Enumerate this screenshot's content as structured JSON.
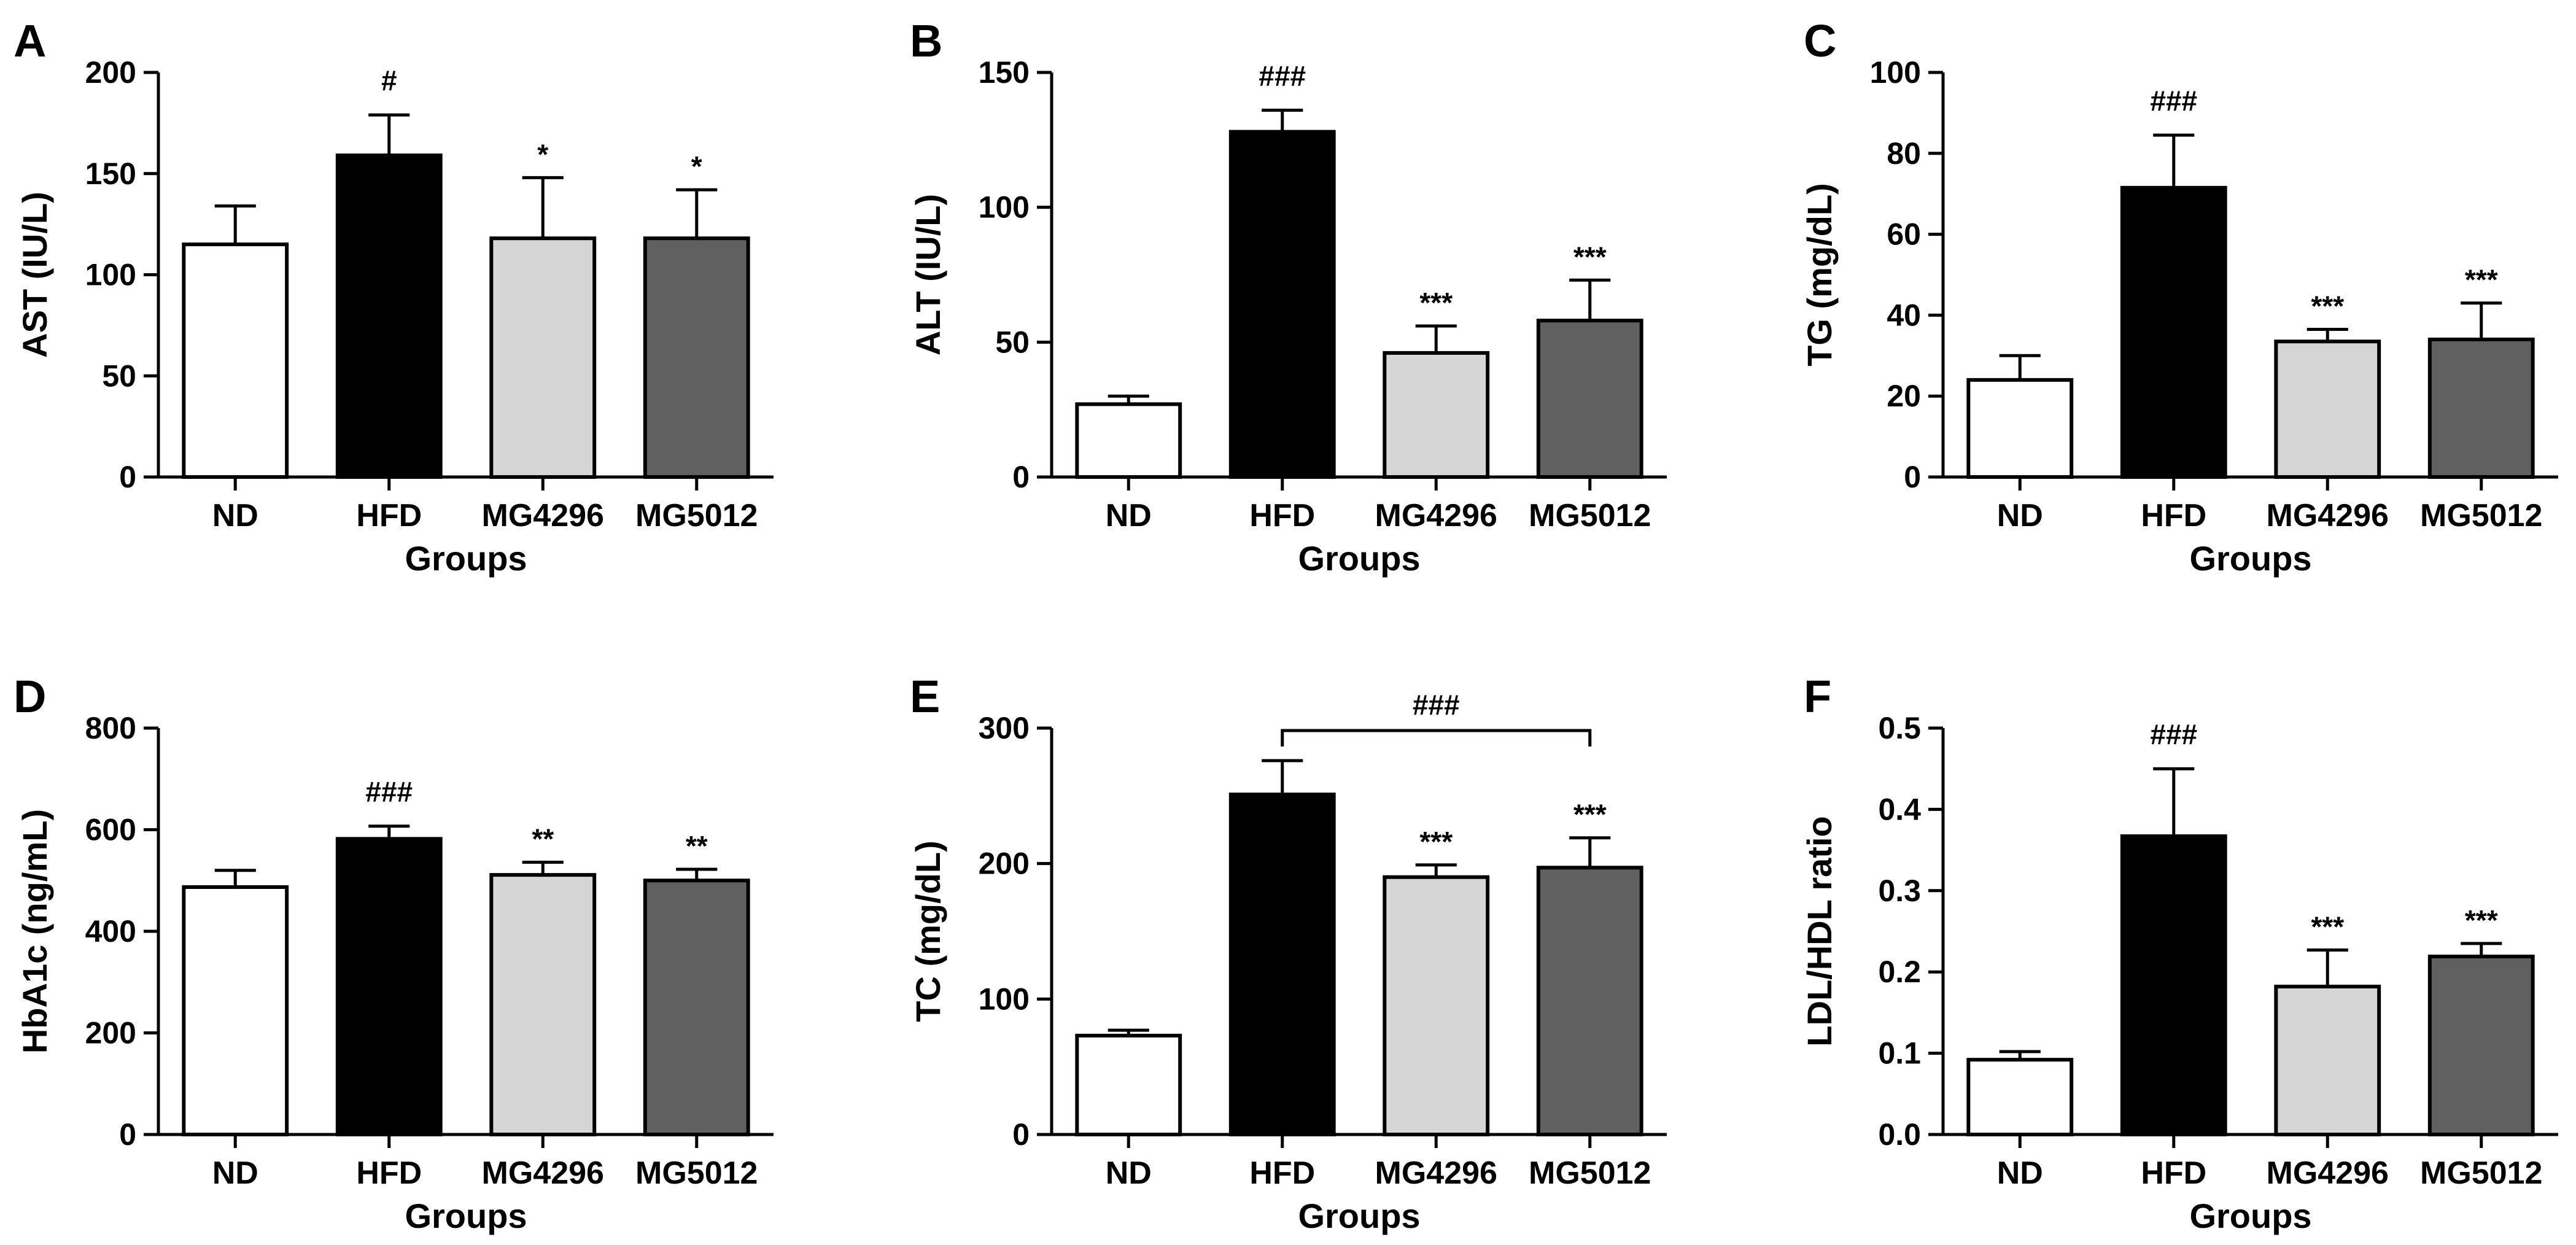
{
  "chart_data": [
    {
      "type": "bar",
      "panel": "A",
      "categories": [
        "ND",
        "HFD",
        "MG4296",
        "MG5012"
      ],
      "values": [
        115,
        159,
        118,
        118
      ],
      "errors": [
        19,
        20,
        30,
        24
      ],
      "significance": [
        "",
        "#",
        "*",
        "*"
      ],
      "colors": [
        "#ffffff",
        "#000000",
        "#d6d6d6",
        "#606060"
      ],
      "ylabel": "AST (IU/L)",
      "xlabel": "Groups",
      "ylim": [
        0,
        200
      ],
      "yticks": [
        "0",
        "50",
        "100",
        "150",
        "200"
      ]
    },
    {
      "type": "bar",
      "panel": "B",
      "categories": [
        "ND",
        "HFD",
        "MG4296",
        "MG5012"
      ],
      "values": [
        27,
        128,
        46,
        58
      ],
      "errors": [
        3,
        8,
        10,
        15
      ],
      "significance": [
        "",
        "###",
        "***",
        "***"
      ],
      "colors": [
        "#ffffff",
        "#000000",
        "#d6d6d6",
        "#606060"
      ],
      "ylabel": "ALT (IU/L)",
      "xlabel": "Groups",
      "ylim": [
        0,
        150
      ],
      "yticks": [
        "0",
        "50",
        "100",
        "150"
      ]
    },
    {
      "type": "bar",
      "panel": "C",
      "categories": [
        "ND",
        "HFD",
        "MG4296",
        "MG5012"
      ],
      "values": [
        24,
        71.5,
        33.5,
        34
      ],
      "errors": [
        6,
        13,
        3,
        9
      ],
      "significance": [
        "",
        "###",
        "***",
        "***"
      ],
      "colors": [
        "#ffffff",
        "#000000",
        "#d6d6d6",
        "#606060"
      ],
      "ylabel": "TG (mg/dL)",
      "xlabel": "Groups",
      "ylim": [
        0,
        100
      ],
      "yticks": [
        "0",
        "20",
        "40",
        "60",
        "80",
        "100"
      ]
    },
    {
      "type": "bar",
      "panel": "D",
      "categories": [
        "ND",
        "HFD",
        "MG4296",
        "MG5012"
      ],
      "values": [
        487,
        582,
        511,
        500
      ],
      "errors": [
        33,
        25,
        25,
        22
      ],
      "significance": [
        "",
        "###",
        "**",
        "**"
      ],
      "colors": [
        "#ffffff",
        "#000000",
        "#d6d6d6",
        "#606060"
      ],
      "ylabel": "HbA1c (ng/mL)",
      "xlabel": "Groups",
      "ylim": [
        0,
        800
      ],
      "yticks": [
        "0",
        "200",
        "400",
        "600",
        "800"
      ]
    },
    {
      "type": "bar",
      "panel": "E",
      "categories": [
        "ND",
        "HFD",
        "MG4296",
        "MG5012"
      ],
      "values": [
        73,
        251,
        190,
        197
      ],
      "errors": [
        4,
        25,
        9,
        22
      ],
      "significance": [
        "",
        "",
        "***",
        "***"
      ],
      "bracket": {
        "from": 1,
        "to": 3,
        "label": "###"
      },
      "colors": [
        "#ffffff",
        "#000000",
        "#d6d6d6",
        "#606060"
      ],
      "ylabel": "TC (mg/dL)",
      "xlabel": "Groups",
      "ylim": [
        0,
        300
      ],
      "yticks": [
        "0",
        "100",
        "200",
        "300"
      ]
    },
    {
      "type": "bar",
      "panel": "F",
      "categories": [
        "ND",
        "HFD",
        "MG4296",
        "MG5012"
      ],
      "values": [
        0.092,
        0.367,
        0.182,
        0.219
      ],
      "errors": [
        0.01,
        0.083,
        0.045,
        0.016
      ],
      "significance": [
        "",
        "###",
        "***",
        "***"
      ],
      "colors": [
        "#ffffff",
        "#000000",
        "#d6d6d6",
        "#606060"
      ],
      "ylabel": "LDL/HDL ratio",
      "xlabel": "Groups",
      "ylim": [
        0,
        0.5
      ],
      "yticks": [
        "0.0",
        "0.1",
        "0.2",
        "0.3",
        "0.4",
        "0.5"
      ]
    }
  ]
}
